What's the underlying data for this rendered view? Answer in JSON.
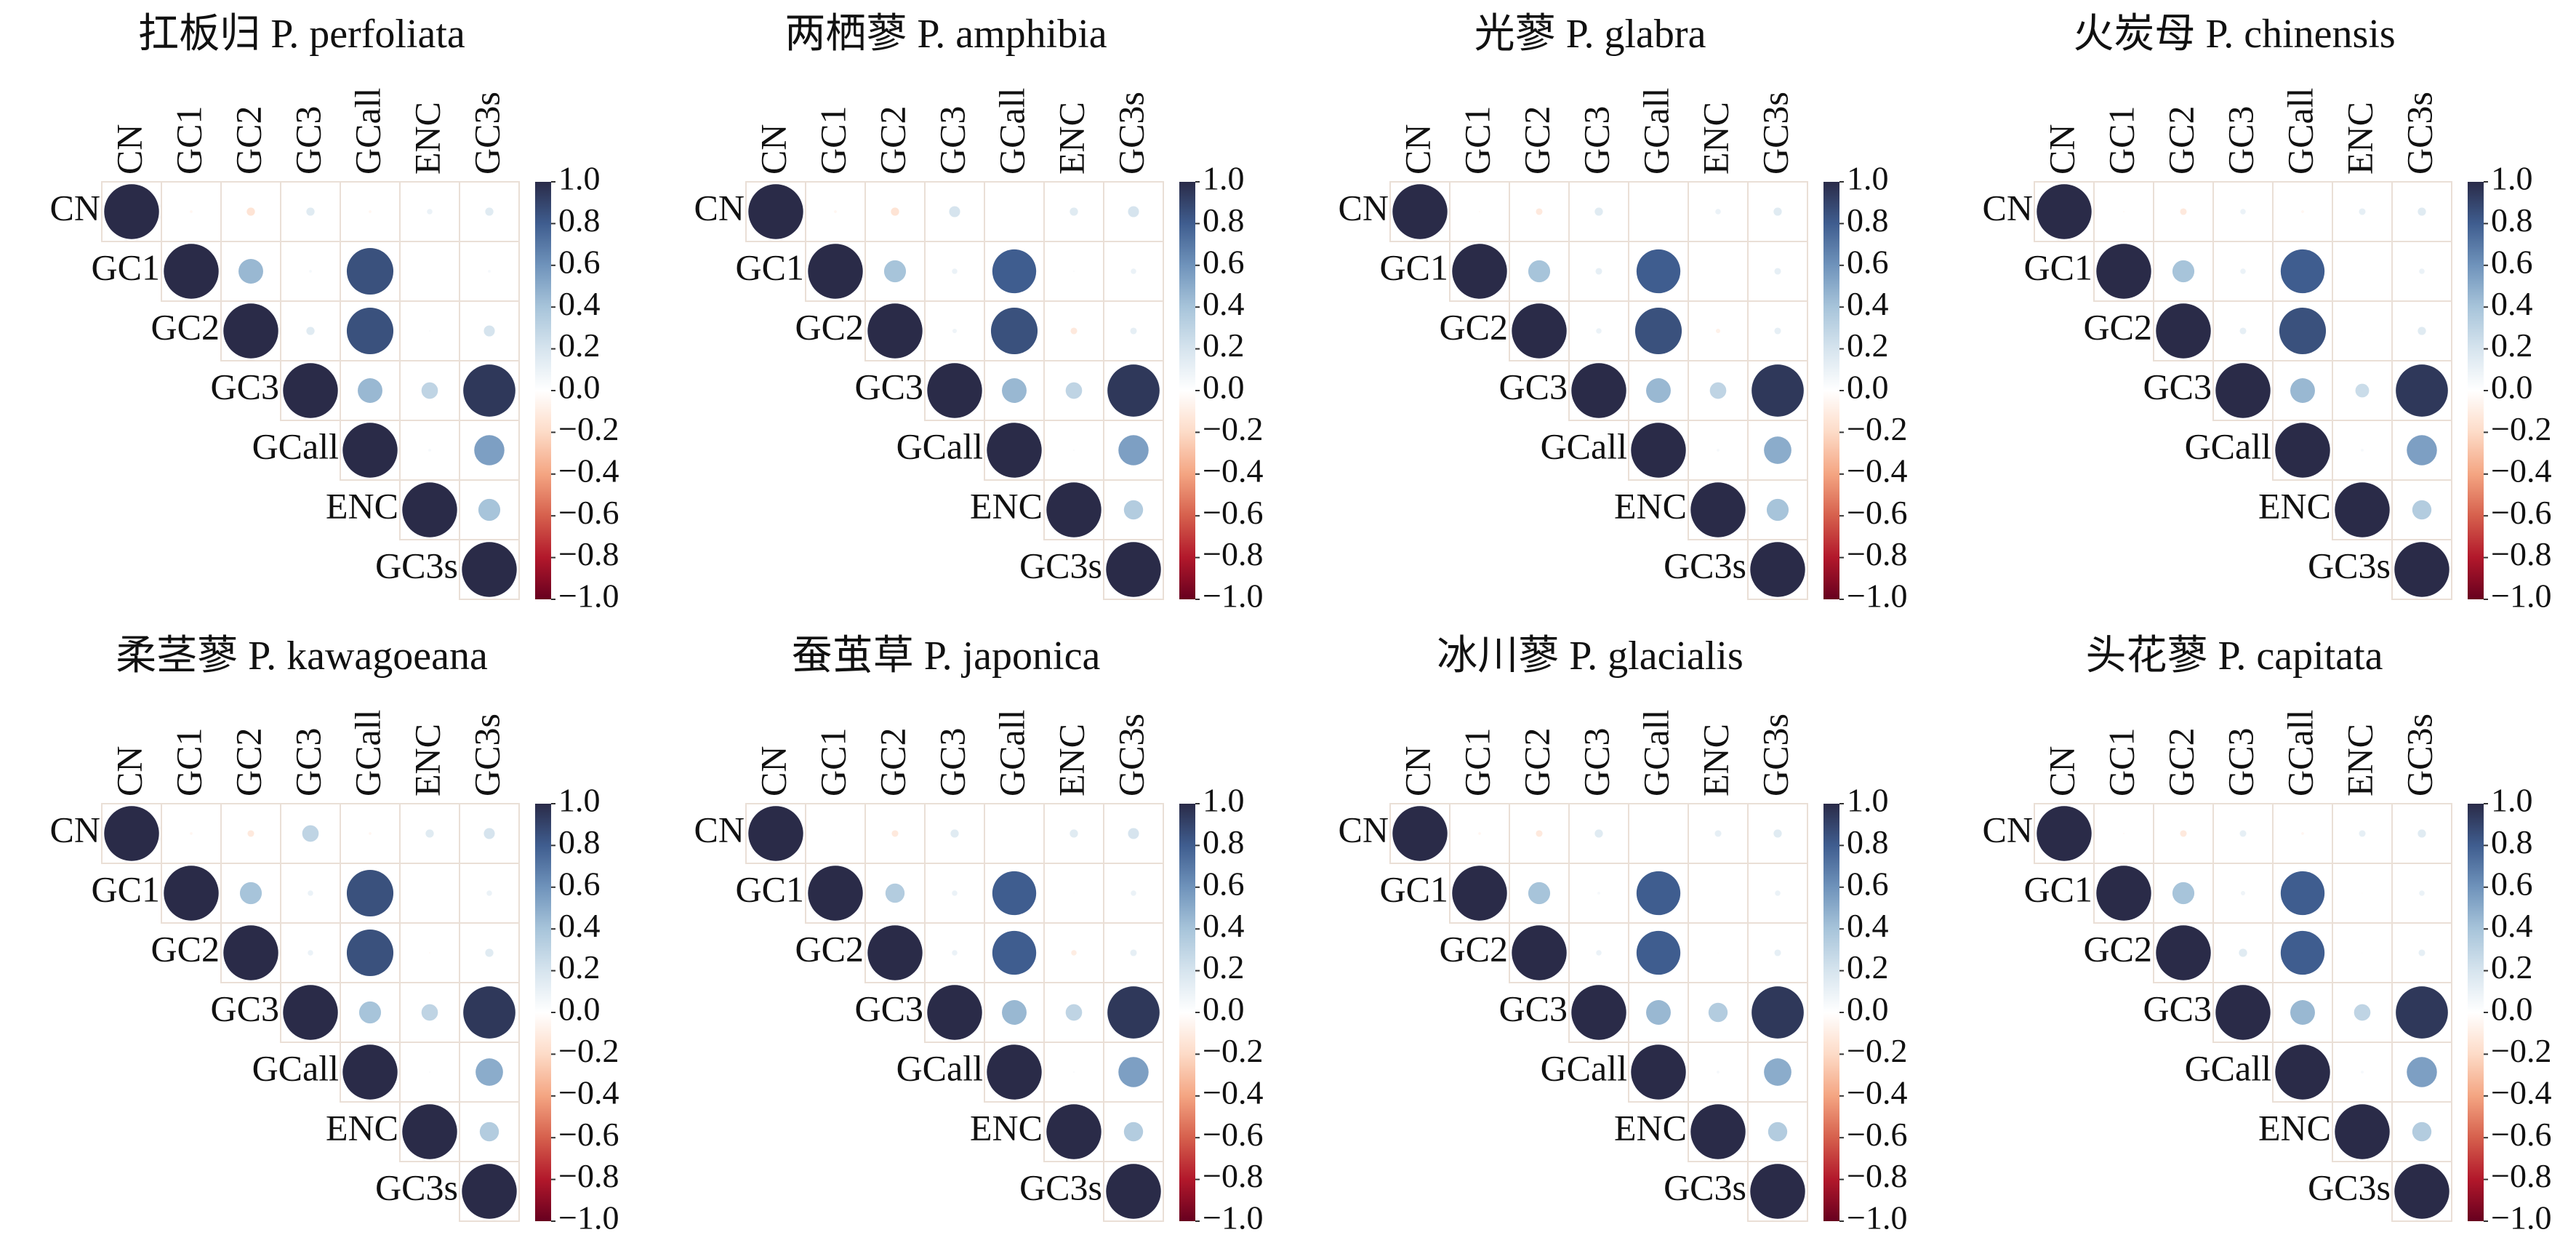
{
  "chart_data": [
    {
      "type": "corrplot",
      "title": "扛板归 P. perfoliata",
      "variables": [
        "CN",
        "GC1",
        "GC2",
        "GC3",
        "GCall",
        "ENC",
        "GC3s"
      ],
      "values": [
        [
          1,
          -0.05,
          -0.15,
          0.15,
          -0.05,
          0.1,
          0.15
        ],
        [
          1,
          0.45,
          0.05,
          0.85,
          0,
          0.05
        ],
        [
          1,
          0.15,
          0.85,
          0.03,
          0.2
        ],
        [
          1,
          0.45,
          0.3,
          0.95
        ],
        [
          1,
          0.05,
          0.55
        ],
        [
          1,
          0.4
        ],
        [
          1
        ]
      ],
      "clim": [
        -1,
        1
      ],
      "cticks": [
        {
          "value": 1,
          "label": "1.0"
        },
        0.8,
        0.6,
        0.4,
        0.2,
        {
          "value": 0,
          "label": "0.0"
        },
        {
          "value": -0.2,
          "label": "−0.2"
        },
        {
          "value": -0.4,
          "label": "−0.4"
        },
        {
          "value": -0.6,
          "label": "−0.6"
        },
        {
          "value": -0.8,
          "label": "−0.8"
        },
        {
          "value": -1,
          "label": "−1.0"
        }
      ],
      "colormap": [
        "#67001f",
        "#b2182b",
        "#d6604d",
        "#f4a582",
        "#fddbc7",
        "#ffffff",
        "#d6e4ee",
        "#a7c4da",
        "#6f93bb",
        "#3f5d8f",
        "#2a2b48"
      ]
    },
    {
      "type": "corrplot",
      "title": "两栖蓼 P. amphibia",
      "variables": [
        "CN",
        "GC1",
        "GC2",
        "GC3",
        "GCall",
        "ENC",
        "GC3s"
      ],
      "values": [
        [
          1,
          -0.05,
          -0.15,
          0.2,
          0.02,
          0.15,
          0.2
        ],
        [
          1,
          0.4,
          0.1,
          0.8,
          0.03,
          0.1
        ],
        [
          1,
          0.08,
          0.85,
          -0.12,
          0.12
        ],
        [
          1,
          0.45,
          0.3,
          0.95
        ],
        [
          1,
          0.03,
          0.55
        ],
        [
          1,
          0.35
        ],
        [
          1
        ]
      ],
      "clim": [
        -1,
        1
      ],
      "cticks": [
        {
          "value": 1,
          "label": "1.0"
        },
        0.8,
        0.6,
        0.4,
        0.2,
        {
          "value": 0,
          "label": "0.0"
        },
        {
          "value": -0.2,
          "label": "−0.2"
        },
        {
          "value": -0.4,
          "label": "−0.4"
        },
        {
          "value": -0.6,
          "label": "−0.6"
        },
        {
          "value": -0.8,
          "label": "−0.8"
        },
        {
          "value": -1,
          "label": "−1.0"
        }
      ],
      "colormap": [
        "#67001f",
        "#b2182b",
        "#d6604d",
        "#f4a582",
        "#fddbc7",
        "#ffffff",
        "#d6e4ee",
        "#a7c4da",
        "#6f93bb",
        "#3f5d8f",
        "#2a2b48"
      ]
    },
    {
      "type": "corrplot",
      "title": "光蓼 P. glabra",
      "variables": [
        "CN",
        "GC1",
        "GC2",
        "GC3",
        "GCall",
        "ENC",
        "GC3s"
      ],
      "values": [
        [
          1,
          -0.03,
          -0.12,
          0.15,
          0.02,
          0.1,
          0.15
        ],
        [
          1,
          0.4,
          0.12,
          0.8,
          0.02,
          0.12
        ],
        [
          1,
          0.1,
          0.85,
          -0.08,
          0.12
        ],
        [
          1,
          0.45,
          0.3,
          0.95
        ],
        [
          1,
          0.05,
          0.5
        ],
        [
          1,
          0.4
        ],
        [
          1
        ]
      ],
      "clim": [
        -1,
        1
      ],
      "cticks": [
        {
          "value": 1,
          "label": "1.0"
        },
        0.8,
        0.6,
        0.4,
        0.2,
        {
          "value": 0,
          "label": "0.0"
        },
        {
          "value": -0.2,
          "label": "−0.2"
        },
        {
          "value": -0.4,
          "label": "−0.4"
        },
        {
          "value": -0.6,
          "label": "−0.6"
        },
        {
          "value": -0.8,
          "label": "−0.8"
        },
        {
          "value": -1,
          "label": "−1.0"
        }
      ],
      "colormap": [
        "#67001f",
        "#b2182b",
        "#d6604d",
        "#f4a582",
        "#fddbc7",
        "#ffffff",
        "#d6e4ee",
        "#a7c4da",
        "#6f93bb",
        "#3f5d8f",
        "#2a2b48"
      ]
    },
    {
      "type": "corrplot",
      "title": "火炭母 P. chinensis",
      "variables": [
        "CN",
        "GC1",
        "GC2",
        "GC3",
        "GCall",
        "ENC",
        "GC3s"
      ],
      "values": [
        [
          1,
          -0.03,
          -0.12,
          0.1,
          -0.05,
          0.12,
          0.15
        ],
        [
          1,
          0.4,
          0.1,
          0.8,
          0.02,
          0.1
        ],
        [
          1,
          0.12,
          0.85,
          0.02,
          0.15
        ],
        [
          1,
          0.45,
          0.25,
          0.95
        ],
        [
          1,
          0.05,
          0.55
        ],
        [
          1,
          0.35
        ],
        [
          1
        ]
      ],
      "clim": [
        -1,
        1
      ],
      "cticks": [
        {
          "value": 1,
          "label": "1.0"
        },
        0.8,
        0.6,
        0.4,
        0.2,
        {
          "value": 0,
          "label": "0.0"
        },
        {
          "value": -0.2,
          "label": "−0.2"
        },
        {
          "value": -0.4,
          "label": "−0.4"
        },
        {
          "value": -0.6,
          "label": "−0.6"
        },
        {
          "value": -0.8,
          "label": "−0.8"
        },
        {
          "value": -1,
          "label": "−1.0"
        }
      ],
      "colormap": [
        "#67001f",
        "#b2182b",
        "#d6604d",
        "#f4a582",
        "#fddbc7",
        "#ffffff",
        "#d6e4ee",
        "#a7c4da",
        "#6f93bb",
        "#3f5d8f",
        "#2a2b48"
      ]
    },
    {
      "type": "corrplot",
      "title": "柔茎蓼 P. kawagoeana",
      "variables": [
        "CN",
        "GC1",
        "GC2",
        "GC3",
        "GCall",
        "ENC",
        "GC3s"
      ],
      "values": [
        [
          1,
          -0.05,
          -0.12,
          0.3,
          -0.05,
          0.15,
          0.2
        ],
        [
          1,
          0.4,
          0.1,
          0.85,
          0,
          0.1
        ],
        [
          1,
          0.1,
          0.85,
          -0.03,
          0.15
        ],
        [
          1,
          0.4,
          0.3,
          0.95
        ],
        [
          1,
          0.03,
          0.5
        ],
        [
          1,
          0.35
        ],
        [
          1
        ]
      ],
      "clim": [
        -1,
        1
      ],
      "cticks": [
        {
          "value": 1,
          "label": "1.0"
        },
        0.8,
        0.6,
        0.4,
        0.2,
        {
          "value": 0,
          "label": "0.0"
        },
        {
          "value": -0.2,
          "label": "−0.2"
        },
        {
          "value": -0.4,
          "label": "−0.4"
        },
        {
          "value": -0.6,
          "label": "−0.6"
        },
        {
          "value": -0.8,
          "label": "−0.8"
        },
        {
          "value": -1,
          "label": "−1.0"
        }
      ],
      "colormap": [
        "#67001f",
        "#b2182b",
        "#d6604d",
        "#f4a582",
        "#fddbc7",
        "#ffffff",
        "#d6e4ee",
        "#a7c4da",
        "#6f93bb",
        "#3f5d8f",
        "#2a2b48"
      ]
    },
    {
      "type": "corrplot",
      "title": "蚕茧草 P. japonica",
      "variables": [
        "CN",
        "GC1",
        "GC2",
        "GC3",
        "GCall",
        "ENC",
        "GC3s"
      ],
      "values": [
        [
          1,
          -0.02,
          -0.12,
          0.15,
          0.02,
          0.15,
          0.2
        ],
        [
          1,
          0.35,
          0.1,
          0.8,
          0.02,
          0.1
        ],
        [
          1,
          0.1,
          0.8,
          -0.1,
          0.12
        ],
        [
          1,
          0.45,
          0.3,
          0.95
        ],
        [
          1,
          0.03,
          0.55
        ],
        [
          1,
          0.35
        ],
        [
          1
        ]
      ],
      "clim": [
        -1,
        1
      ],
      "cticks": [
        {
          "value": 1,
          "label": "1.0"
        },
        0.8,
        0.6,
        0.4,
        0.2,
        {
          "value": 0,
          "label": "0.0"
        },
        {
          "value": -0.2,
          "label": "−0.2"
        },
        {
          "value": -0.4,
          "label": "−0.4"
        },
        {
          "value": -0.6,
          "label": "−0.6"
        },
        {
          "value": -0.8,
          "label": "−0.8"
        },
        {
          "value": -1,
          "label": "−1.0"
        }
      ],
      "colormap": [
        "#67001f",
        "#b2182b",
        "#d6604d",
        "#f4a582",
        "#fddbc7",
        "#ffffff",
        "#d6e4ee",
        "#a7c4da",
        "#6f93bb",
        "#3f5d8f",
        "#2a2b48"
      ]
    },
    {
      "type": "corrplot",
      "title": "冰川蓼 P. glacialis",
      "variables": [
        "CN",
        "GC1",
        "GC2",
        "GC3",
        "GCall",
        "ENC",
        "GC3s"
      ],
      "values": [
        [
          1,
          -0.05,
          -0.12,
          0.15,
          -0.02,
          0.12,
          0.15
        ],
        [
          1,
          0.4,
          0.05,
          0.8,
          0,
          0.1
        ],
        [
          1,
          0.1,
          0.8,
          -0.02,
          0.12
        ],
        [
          1,
          0.45,
          0.35,
          0.95
        ],
        [
          1,
          0.05,
          0.5
        ],
        [
          1,
          0.35
        ],
        [
          1
        ]
      ],
      "clim": [
        -1,
        1
      ],
      "cticks": [
        {
          "value": 1,
          "label": "1.0"
        },
        0.8,
        0.6,
        0.4,
        0.2,
        {
          "value": 0,
          "label": "0.0"
        },
        {
          "value": -0.2,
          "label": "−0.2"
        },
        {
          "value": -0.4,
          "label": "−0.4"
        },
        {
          "value": -0.6,
          "label": "−0.6"
        },
        {
          "value": -0.8,
          "label": "−0.8"
        },
        {
          "value": -1,
          "label": "−1.0"
        }
      ],
      "colormap": [
        "#67001f",
        "#b2182b",
        "#d6604d",
        "#f4a582",
        "#fddbc7",
        "#ffffff",
        "#d6e4ee",
        "#a7c4da",
        "#6f93bb",
        "#3f5d8f",
        "#2a2b48"
      ]
    },
    {
      "type": "corrplot",
      "title": "头花蓼 P. capitata",
      "variables": [
        "CN",
        "GC1",
        "GC2",
        "GC3",
        "GCall",
        "ENC",
        "GC3s"
      ],
      "values": [
        [
          1,
          -0.03,
          -0.12,
          0.12,
          -0.05,
          0.12,
          0.15
        ],
        [
          1,
          0.4,
          0.08,
          0.8,
          -0.02,
          0.1
        ],
        [
          1,
          0.15,
          0.8,
          0.02,
          0.12
        ],
        [
          1,
          0.45,
          0.3,
          0.95
        ],
        [
          1,
          0.05,
          0.55
        ],
        [
          1,
          0.35
        ],
        [
          1
        ]
      ],
      "clim": [
        -1,
        1
      ],
      "cticks": [
        {
          "value": 1,
          "label": "1.0"
        },
        0.8,
        0.6,
        0.4,
        0.2,
        {
          "value": 0,
          "label": "0.0"
        },
        {
          "value": -0.2,
          "label": "−0.2"
        },
        {
          "value": -0.4,
          "label": "−0.4"
        },
        {
          "value": -0.6,
          "label": "−0.6"
        },
        {
          "value": -0.8,
          "label": "−0.8"
        },
        {
          "value": -1,
          "label": "−1.0"
        }
      ],
      "colormap": [
        "#67001f",
        "#b2182b",
        "#d6604d",
        "#f4a582",
        "#fddbc7",
        "#ffffff",
        "#d6e4ee",
        "#a7c4da",
        "#6f93bb",
        "#3f5d8f",
        "#2a2b48"
      ]
    }
  ]
}
